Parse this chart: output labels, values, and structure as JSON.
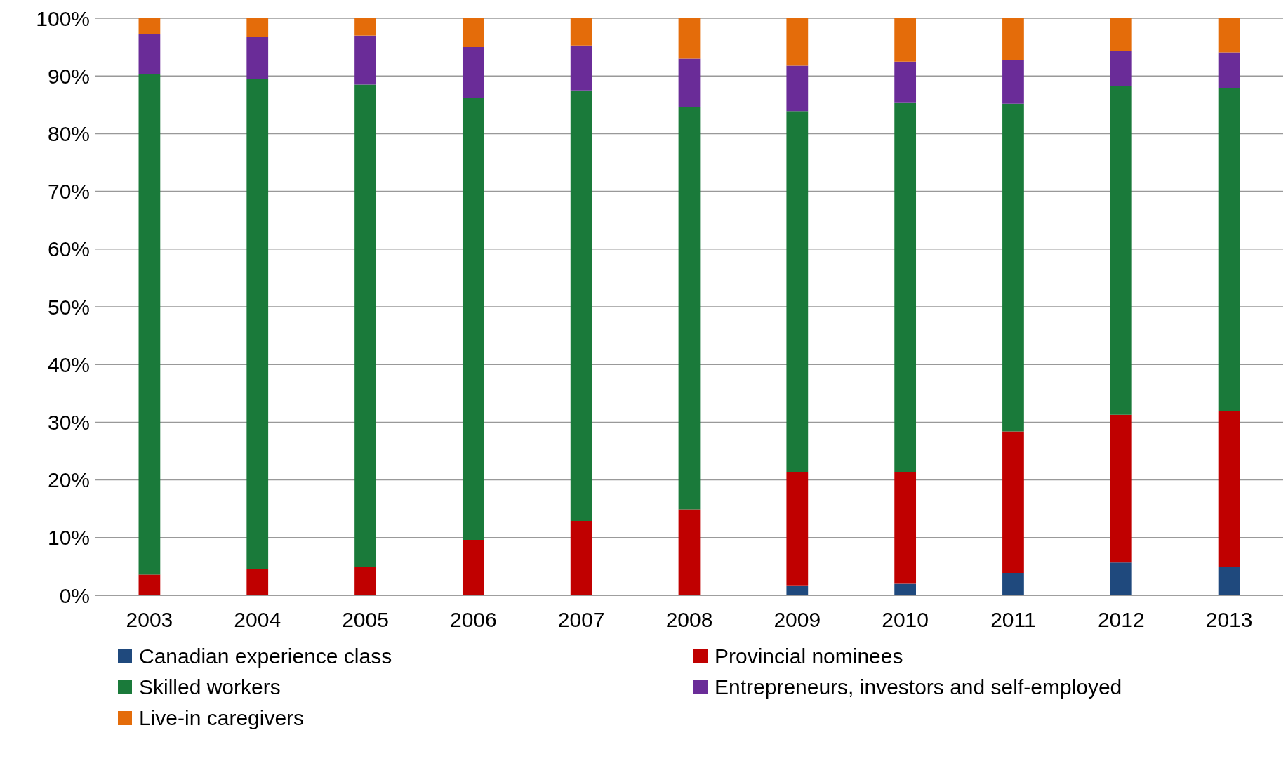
{
  "chart_data": {
    "type": "bar",
    "stacked": true,
    "categories": [
      "2003",
      "2004",
      "2005",
      "2006",
      "2007",
      "2008",
      "2009",
      "2010",
      "2011",
      "2012",
      "2013"
    ],
    "series": [
      {
        "name": "Canadian experience class",
        "color": "#1f497d",
        "values": [
          0,
          0,
          0,
          0,
          0,
          0,
          1.6,
          2.0,
          3.9,
          5.7,
          4.9
        ]
      },
      {
        "name": "Provincial nominees",
        "color": "#c00000",
        "values": [
          3.6,
          4.6,
          5.0,
          9.6,
          12.9,
          14.9,
          19.8,
          19.4,
          24.5,
          25.6,
          27.0
        ]
      },
      {
        "name": "Skilled workers",
        "color": "#1a7a3a",
        "values": [
          86.8,
          84.9,
          83.5,
          76.6,
          74.6,
          69.7,
          62.5,
          63.9,
          56.8,
          56.9,
          56.0
        ]
      },
      {
        "name": "Entrepreneurs, investors and self-employed",
        "color": "#6a2c98",
        "values": [
          6.9,
          7.3,
          8.5,
          8.8,
          7.8,
          8.4,
          7.9,
          7.2,
          7.6,
          6.2,
          6.2
        ]
      },
      {
        "name": "Live-in caregivers",
        "color": "#e46c0a",
        "values": [
          2.7,
          3.2,
          3.0,
          5.0,
          4.7,
          7.0,
          8.2,
          7.5,
          7.2,
          5.6,
          5.9
        ]
      }
    ],
    "ylim": [
      0,
      100
    ],
    "yticks": [
      {
        "value": 0,
        "label": "0%"
      },
      {
        "value": 10,
        "label": "10%"
      },
      {
        "value": 20,
        "label": "20%"
      },
      {
        "value": 30,
        "label": "30%"
      },
      {
        "value": 40,
        "label": "40%"
      },
      {
        "value": 50,
        "label": "50%"
      },
      {
        "value": 60,
        "label": "60%"
      },
      {
        "value": 70,
        "label": "70%"
      },
      {
        "value": 80,
        "label": "80%"
      },
      {
        "value": 90,
        "label": "90%"
      },
      {
        "value": 100,
        "label": "100%"
      }
    ],
    "grid": "y",
    "legend": "bottom"
  }
}
